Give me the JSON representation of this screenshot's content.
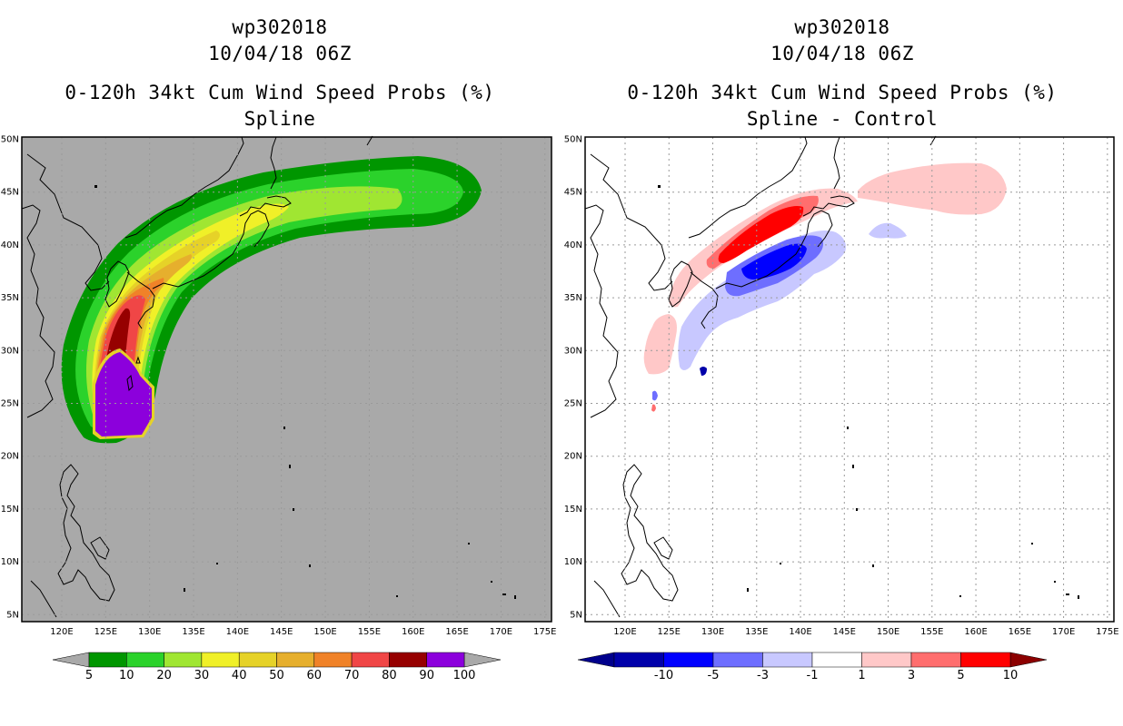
{
  "left_panel": {
    "storm_id": "wp302018",
    "datetime": "10/04/18 06Z",
    "product": "0-120h 34kt Cum Wind Speed Probs (%)",
    "subtitle": "Spline",
    "background_color": "#a9a9a9",
    "colorbar": {
      "colors": [
        "#009600",
        "#2bd22b",
        "#a0e632",
        "#f0f028",
        "#e6d228",
        "#e6af2d",
        "#f08228",
        "#f04646",
        "#960000",
        "#8c00dc"
      ],
      "labels": [
        "5",
        "10",
        "20",
        "30",
        "40",
        "50",
        "60",
        "70",
        "80",
        "90",
        "100"
      ],
      "extend_color": "#a9a9a9"
    }
  },
  "right_panel": {
    "storm_id": "wp302018",
    "datetime": "10/04/18 06Z",
    "product": "0-120h 34kt Cum Wind Speed Probs (%)",
    "subtitle": "Spline - Control",
    "background_color": "#ffffff",
    "colorbar": {
      "colors": [
        "#0000aa",
        "#0000ff",
        "#6e6eff",
        "#c8c8ff",
        "#ffffff",
        "#ffc8c8",
        "#ff6e6e",
        "#ff0000"
      ],
      "labels": [
        "-10",
        "-5",
        "-3",
        "-1",
        "1",
        "3",
        "5",
        "10"
      ],
      "low_extend_color": "#00008c",
      "high_extend_color": "#8c0000"
    }
  },
  "axes": {
    "lat_labels": [
      "50N",
      "45N",
      "40N",
      "35N",
      "30N",
      "25N",
      "20N",
      "15N",
      "10N",
      "5N"
    ],
    "lon_labels": [
      "120E",
      "125E",
      "130E",
      "135E",
      "140E",
      "145E",
      "150E",
      "155E",
      "160E",
      "165E",
      "170E",
      "175E"
    ]
  }
}
